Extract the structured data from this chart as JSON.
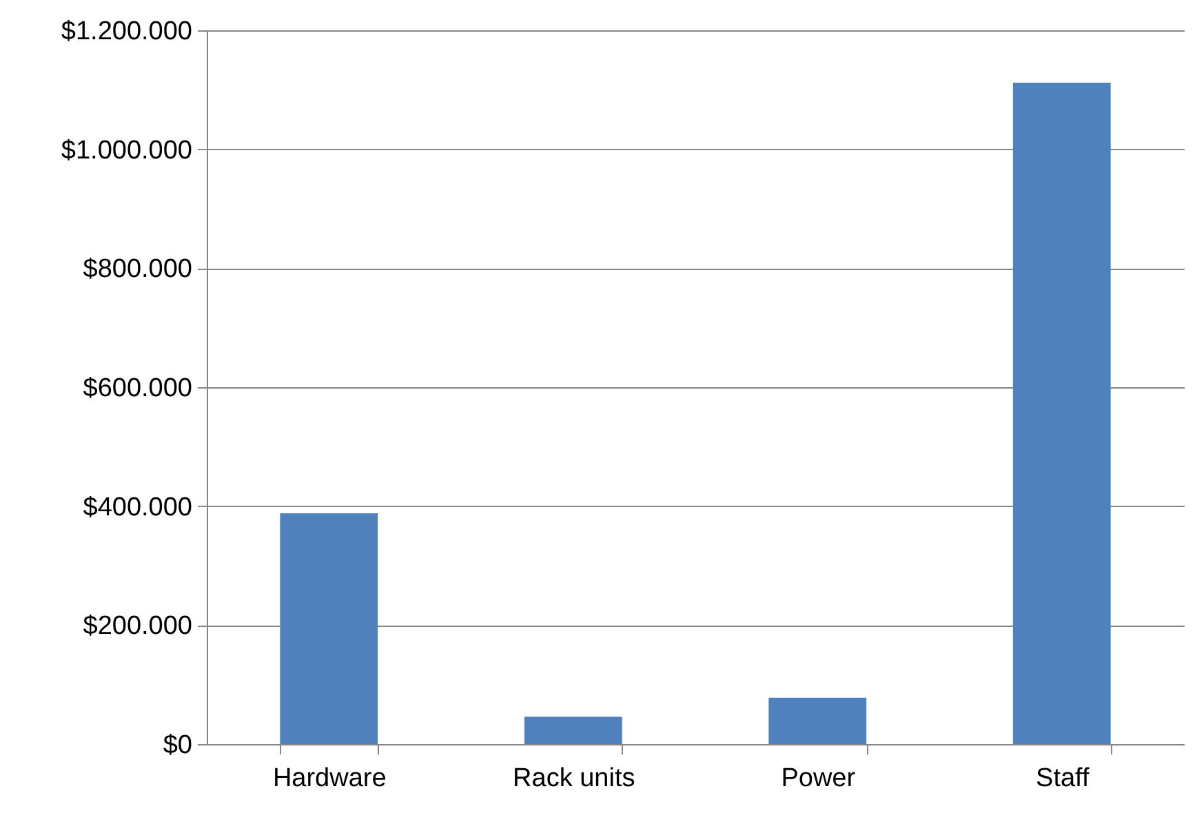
{
  "chart_data": {
    "type": "bar",
    "categories": [
      "Hardware",
      "Rack units",
      "Power",
      "Staff"
    ],
    "values": [
      388000,
      46000,
      78000,
      1112000
    ],
    "color": "#4f81bd",
    "ylim": [
      0,
      1200000
    ],
    "yticks": [
      {
        "value": 0,
        "label": "$0"
      },
      {
        "value": 200000,
        "label": "$200.000"
      },
      {
        "value": 400000,
        "label": "$400.000"
      },
      {
        "value": 600000,
        "label": "$600.000"
      },
      {
        "value": 800000,
        "label": "$800.000"
      },
      {
        "value": 1000000,
        "label": "$1.000.000"
      },
      {
        "value": 1200000,
        "label": "$1.200.000"
      }
    ],
    "grid": "y"
  }
}
